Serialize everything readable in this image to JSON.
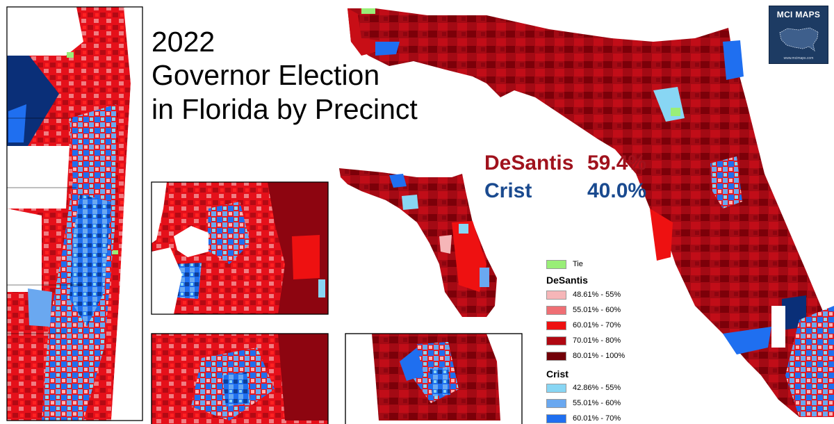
{
  "title": {
    "line1": "2022",
    "line2": "Governor Election",
    "line3": "in Florida by Precinct"
  },
  "results": {
    "desantis": {
      "name": "DeSantis",
      "pct": "59.4%",
      "color": "#a0121d"
    },
    "crist": {
      "name": "Crist",
      "pct": "40.0%",
      "color": "#1a4a8f"
    }
  },
  "logo": {
    "text": "MCI MAPS",
    "url": "www.mcimaps.com",
    "icon": "us-map-icon"
  },
  "legend": {
    "tie": {
      "label": "Tie",
      "color": "#99ee77"
    },
    "desantis_title": "DeSantis",
    "desantis": [
      {
        "label": "48.61% - 55%",
        "color": "#f6b6b8"
      },
      {
        "label": "55.01% - 60%",
        "color": "#ef6f74"
      },
      {
        "label": "60.01% - 70%",
        "color": "#ee1111"
      },
      {
        "label": "70.01% - 80%",
        "color": "#b00812"
      },
      {
        "label": "80.01% - 100%",
        "color": "#720008"
      }
    ],
    "crist_title": "Crist",
    "crist": [
      {
        "label": "42.86% - 55%",
        "color": "#88d6f4"
      },
      {
        "label": "55.01% - 60%",
        "color": "#6aa8f0"
      },
      {
        "label": "60.01% - 70%",
        "color": "#1f6ff0"
      }
    ]
  }
}
